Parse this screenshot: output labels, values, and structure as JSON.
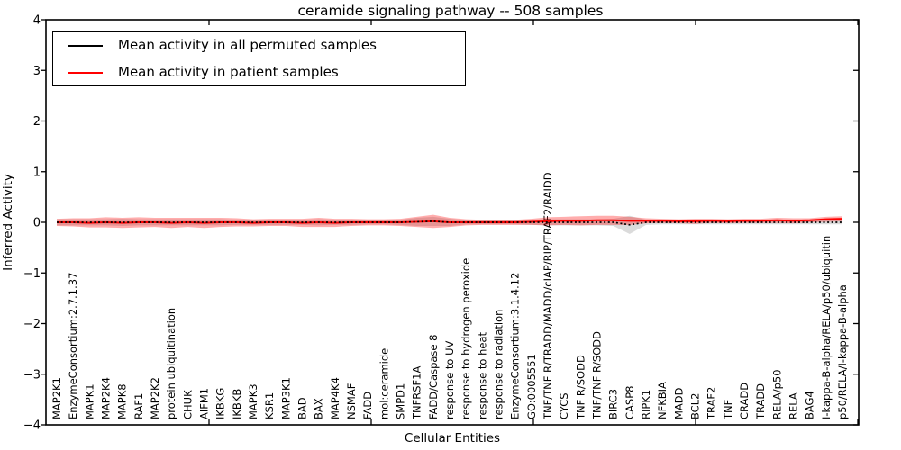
{
  "figure": {
    "title": "ceramide signaling pathway -- 508 samples",
    "xlabel": "Cellular Entities",
    "ylabel": "Inferred Activity"
  },
  "legend": {
    "items": [
      {
        "label": "Mean activity in all permuted samples",
        "color": "#000000"
      },
      {
        "label": "Mean activity in patient samples",
        "color": "#ff0000"
      }
    ]
  },
  "chart_data": {
    "type": "line",
    "title": "ceramide signaling pathway -- 508 samples",
    "xlabel": "Cellular Entities",
    "ylabel": "Inferred Activity",
    "ylim": [
      -4,
      4
    ],
    "yticks": [
      4,
      3,
      2,
      1,
      0,
      -1,
      -2,
      -3,
      -4
    ],
    "ytick_labels": [
      "4",
      "3",
      "2",
      "1",
      "0",
      "−1",
      "−2",
      "−3",
      "−4"
    ],
    "grid": false,
    "legend_position": "upper left",
    "categories": [
      "MAP2K1",
      "EnzymeConsortium:2.7.1.37",
      "MAPK1",
      "MAP2K4",
      "MAPK8",
      "RAF1",
      "MAP2K2",
      "protein ubiquitination",
      "CHUK",
      "AIFM1",
      "IKBKG",
      "IKBKB",
      "MAPK3",
      "KSR1",
      "MAP3K1",
      "BAD",
      "BAX",
      "MAP4K4",
      "NSMAF",
      "FADD",
      "mol:ceramide",
      "SMPD1",
      "TNFRSF1A",
      "FADD/Caspase 8",
      "response to UV",
      "response to hydrogen peroxide",
      "response to heat",
      "response to radiation",
      "EnzymeConsortium:3.1.4.12",
      "GO:0005551",
      "TNF/TNF R/TRADD/MADD/cIAP/RIP/TRAF2/RAIDD",
      "CYCS",
      "TNF R/SODD",
      "TNF/TNF R/SODD",
      "BIRC3",
      "CASP8",
      "RIPK1",
      "NFKBIA",
      "MADD",
      "BCL2",
      "TRAF2",
      "TNF",
      "CRADD",
      "TRADD",
      "RELA/p50",
      "RELA",
      "BAG4",
      "I-kappa-B-alpha/RELA/p50/ubiquitin",
      "p50/RELA/I-kappa-B-alpha"
    ],
    "series": [
      {
        "name": "Mean activity in all permuted samples",
        "color": "#000000",
        "line_style": "dotted",
        "band_color": "rgba(0,0,0,0.14)",
        "values": [
          0,
          0,
          0,
          0,
          0,
          0,
          0,
          0,
          0,
          0,
          0,
          0,
          0,
          0,
          0,
          0,
          0,
          0,
          0,
          0,
          0,
          0,
          0.01,
          0.02,
          0,
          0,
          0,
          0,
          0,
          0,
          0,
          0,
          0,
          0,
          0,
          -0.05,
          0,
          0,
          0,
          0,
          0,
          0,
          0,
          0,
          0,
          0,
          0,
          0,
          0
        ],
        "std": [
          0.06,
          0.06,
          0.06,
          0.06,
          0.07,
          0.06,
          0.06,
          0.06,
          0.06,
          0.06,
          0.06,
          0.05,
          0.05,
          0.05,
          0.05,
          0.05,
          0.06,
          0.05,
          0.05,
          0.04,
          0.04,
          0.05,
          0.08,
          0.09,
          0.07,
          0.04,
          0.04,
          0.04,
          0.04,
          0.05,
          0.06,
          0.06,
          0.06,
          0.06,
          0.07,
          0.18,
          0.05,
          0.04,
          0.04,
          0.04,
          0.04,
          0.04,
          0.04,
          0.04,
          0.04,
          0.04,
          0.04,
          0.04,
          0.04
        ]
      },
      {
        "name": "Mean activity in patient samples",
        "color": "#ff0000",
        "line_style": "solid",
        "band_color": "rgba(255,0,0,0.32)",
        "values": [
          0,
          0,
          -0.01,
          0,
          -0.01,
          0,
          0,
          -0.01,
          0,
          -0.01,
          0,
          0,
          -0.01,
          0,
          0,
          -0.01,
          0,
          -0.01,
          0,
          0,
          0,
          0,
          0.01,
          0.02,
          0,
          0,
          0,
          0,
          0,
          0.01,
          0.02,
          0.03,
          0.03,
          0.04,
          0.04,
          0.03,
          0.03,
          0.03,
          0.02,
          0.02,
          0.03,
          0.02,
          0.03,
          0.03,
          0.04,
          0.03,
          0.04,
          0.06,
          0.07
        ],
        "std": [
          0.07,
          0.08,
          0.09,
          0.1,
          0.1,
          0.1,
          0.09,
          0.1,
          0.09,
          0.1,
          0.09,
          0.08,
          0.07,
          0.07,
          0.07,
          0.08,
          0.09,
          0.08,
          0.07,
          0.06,
          0.06,
          0.07,
          0.1,
          0.13,
          0.09,
          0.06,
          0.05,
          0.05,
          0.05,
          0.06,
          0.08,
          0.08,
          0.09,
          0.09,
          0.09,
          0.08,
          0.05,
          0.04,
          0.04,
          0.05,
          0.04,
          0.04,
          0.04,
          0.04,
          0.05,
          0.05,
          0.04,
          0.05,
          0.05
        ]
      }
    ]
  }
}
